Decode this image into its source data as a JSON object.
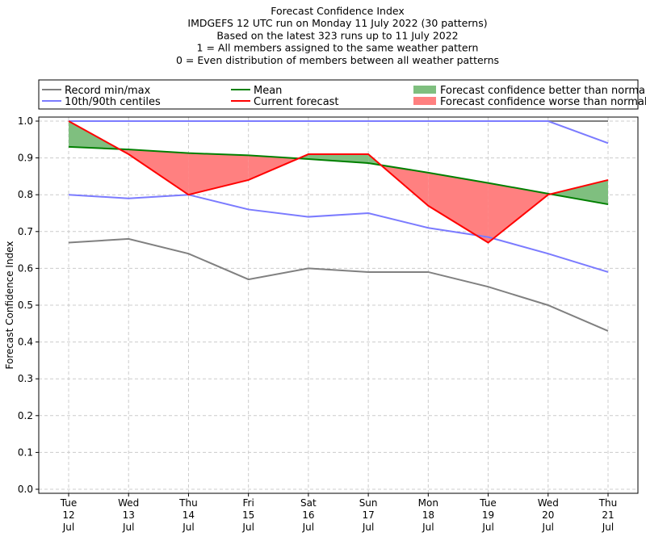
{
  "chart_data": {
    "type": "line",
    "title_lines": [
      "Forecast Confidence Index",
      "IMDGEFS 12 UTC run on Monday 11 July 2022 (30 patterns)",
      "Based on the latest 323 runs up to 11 July 2022",
      "1 = All members assigned to the same weather pattern",
      "0 = Even distribution of members between all weather patterns"
    ],
    "ylabel": "Forecast Confidence Index",
    "ylim": [
      0,
      1
    ],
    "yticks": [
      "0.0",
      "0.1",
      "0.2",
      "0.3",
      "0.4",
      "0.5",
      "0.6",
      "0.7",
      "0.8",
      "0.9",
      "1.0"
    ],
    "grid": true,
    "legend_placement": "top, above plot",
    "categories": [
      [
        "Tue",
        "12",
        "Jul"
      ],
      [
        "Wed",
        "13",
        "Jul"
      ],
      [
        "Thu",
        "14",
        "Jul"
      ],
      [
        "Fri",
        "15",
        "Jul"
      ],
      [
        "Sat",
        "16",
        "Jul"
      ],
      [
        "Sun",
        "17",
        "Jul"
      ],
      [
        "Mon",
        "18",
        "Jul"
      ],
      [
        "Tue",
        "19",
        "Jul"
      ],
      [
        "Wed",
        "20",
        "Jul"
      ],
      [
        "Thu",
        "21",
        "Jul"
      ]
    ],
    "series": [
      {
        "name": "Record min/max",
        "color": "#808080",
        "role": "max",
        "values": [
          1,
          1,
          1,
          1,
          1,
          1,
          1,
          1,
          1,
          1
        ]
      },
      {
        "name": "Record min/max",
        "color": "#808080",
        "role": "min",
        "values": [
          0.67,
          0.68,
          0.64,
          0.57,
          0.6,
          0.59,
          0.59,
          0.55,
          0.5,
          0.43
        ]
      },
      {
        "name": "10th/90th centiles",
        "color": "#7b7bff",
        "role": "p90",
        "values": [
          1,
          1,
          1,
          1,
          1,
          1,
          1,
          1,
          1,
          0.94
        ]
      },
      {
        "name": "10th/90th centiles",
        "color": "#7b7bff",
        "role": "p10",
        "values": [
          0.8,
          0.79,
          0.8,
          0.76,
          0.74,
          0.75,
          0.71,
          0.685,
          0.64,
          0.59
        ]
      },
      {
        "name": "Mean",
        "color": "#008000",
        "role": "mean",
        "values": [
          0.93,
          0.923,
          0.913,
          0.907,
          0.897,
          0.886,
          0.86,
          0.832,
          0.803,
          0.774
        ]
      },
      {
        "name": "Current forecast",
        "color": "#ff0000",
        "role": "current",
        "values": [
          1.0,
          0.91,
          0.8,
          0.84,
          0.91,
          0.91,
          0.77,
          0.67,
          0.8,
          0.84
        ]
      }
    ],
    "fills": {
      "better": {
        "name": "Forecast confidence better than normal",
        "color": "#7fbf7f"
      },
      "worse": {
        "name": "Forecast confidence worse than normal",
        "color": "#ff8080"
      }
    }
  }
}
